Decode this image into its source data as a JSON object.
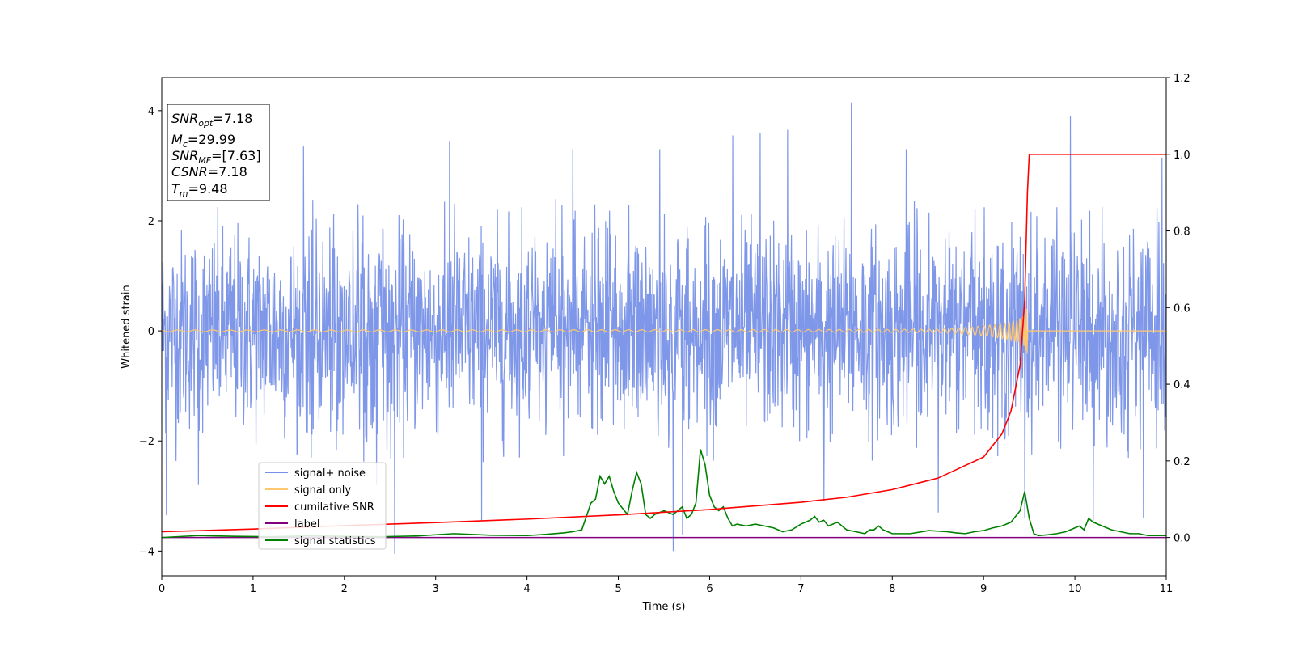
{
  "chart_data": {
    "type": "line",
    "xlabel": "Time (s)",
    "ylabel": "Whitened strain",
    "xlim": [
      0,
      11
    ],
    "ylim_left": [
      -4.45,
      4.6
    ],
    "ylim_right": [
      -0.1,
      1.2
    ],
    "xticks": [
      "0",
      "1",
      "2",
      "3",
      "4",
      "5",
      "6",
      "7",
      "8",
      "9",
      "10",
      "11"
    ],
    "yticks_left": [
      "−4",
      "−2",
      "0",
      "2",
      "4"
    ],
    "yticks_right": [
      "0.0",
      "0.2",
      "0.4",
      "0.6",
      "0.8",
      "1.0",
      "1.2"
    ],
    "grid": false,
    "legend_position": "lower-left",
    "annotation": {
      "snr_opt": "7.18",
      "mc": "29.99",
      "snr_mf": "[7.63]",
      "csnr": "7.18",
      "tm": "9.48"
    },
    "series": [
      {
        "name": "signal+ noise",
        "axis": "left",
        "color": "#7891e8",
        "description_range": [
          -2.6,
          2.6
        ],
        "outliers": [
          [
            0.05,
            -3.35
          ],
          [
            0.4,
            -2.8
          ],
          [
            1.55,
            3.35
          ],
          [
            2.35,
            -2.8
          ],
          [
            2.55,
            -4.05
          ],
          [
            3.15,
            3.45
          ],
          [
            3.5,
            -3.45
          ],
          [
            4.5,
            3.3
          ],
          [
            5.45,
            3.3
          ],
          [
            5.6,
            -4.0
          ],
          [
            5.7,
            -3.7
          ],
          [
            6.25,
            3.55
          ],
          [
            6.55,
            3.6
          ],
          [
            6.85,
            3.65
          ],
          [
            7.25,
            -3.1
          ],
          [
            7.55,
            4.15
          ],
          [
            8.15,
            3.3
          ],
          [
            8.5,
            -3.3
          ],
          [
            9.45,
            -3.4
          ],
          [
            9.95,
            3.9
          ],
          [
            10.2,
            -3.5
          ],
          [
            10.75,
            -3.4
          ],
          [
            10.95,
            3.15
          ]
        ]
      },
      {
        "name": "signal only",
        "axis": "left",
        "color": "#ffc870",
        "chirp_end": 9.48,
        "max_amplitude": 0.55
      },
      {
        "name": "cumilative SNR",
        "axis": "right",
        "color": "#ff0000",
        "x": [
          0,
          1,
          2,
          3,
          4,
          5,
          6,
          7,
          7.5,
          8,
          8.5,
          9,
          9.2,
          9.3,
          9.4,
          9.45,
          9.48,
          9.5,
          11
        ],
        "y": [
          0.015,
          0.022,
          0.031,
          0.039,
          0.048,
          0.059,
          0.073,
          0.092,
          0.105,
          0.125,
          0.155,
          0.21,
          0.27,
          0.33,
          0.45,
          0.62,
          0.9,
          1.0,
          1.0
        ]
      },
      {
        "name": "label",
        "axis": "right",
        "color": "#800080",
        "x": [
          0,
          11
        ],
        "y": [
          0.0,
          0.0
        ]
      },
      {
        "name": "signal statistics",
        "axis": "right",
        "color": "#008000",
        "x": [
          0,
          0.4,
          0.8,
          1.2,
          1.6,
          2.0,
          2.4,
          2.8,
          3.2,
          3.6,
          4.0,
          4.2,
          4.4,
          4.5,
          4.6,
          4.7,
          4.75,
          4.8,
          4.85,
          4.9,
          4.95,
          5.0,
          5.1,
          5.15,
          5.2,
          5.25,
          5.3,
          5.35,
          5.4,
          5.5,
          5.6,
          5.65,
          5.7,
          5.75,
          5.8,
          5.85,
          5.9,
          5.95,
          6.0,
          6.05,
          6.1,
          6.15,
          6.2,
          6.25,
          6.3,
          6.4,
          6.5,
          6.6,
          6.7,
          6.8,
          6.9,
          7.0,
          7.1,
          7.15,
          7.2,
          7.25,
          7.3,
          7.4,
          7.5,
          7.6,
          7.7,
          7.75,
          7.8,
          7.85,
          7.9,
          8.0,
          8.2,
          8.4,
          8.6,
          8.7,
          8.8,
          8.9,
          9.0,
          9.1,
          9.2,
          9.3,
          9.35,
          9.4,
          9.45,
          9.5,
          9.55,
          9.6,
          9.7,
          9.8,
          9.9,
          10.0,
          10.05,
          10.1,
          10.15,
          10.2,
          10.3,
          10.4,
          10.5,
          10.6,
          10.7,
          10.8,
          11.0
        ],
        "y": [
          0.0,
          0.005,
          0.003,
          0.002,
          0.004,
          0.003,
          0.002,
          0.004,
          0.01,
          0.006,
          0.005,
          0.008,
          0.012,
          0.015,
          0.02,
          0.09,
          0.1,
          0.16,
          0.14,
          0.16,
          0.12,
          0.09,
          0.06,
          0.12,
          0.17,
          0.14,
          0.06,
          0.05,
          0.06,
          0.07,
          0.06,
          0.07,
          0.08,
          0.05,
          0.06,
          0.09,
          0.23,
          0.19,
          0.11,
          0.08,
          0.07,
          0.08,
          0.05,
          0.03,
          0.035,
          0.03,
          0.035,
          0.03,
          0.025,
          0.015,
          0.02,
          0.035,
          0.045,
          0.055,
          0.04,
          0.045,
          0.03,
          0.04,
          0.02,
          0.015,
          0.01,
          0.02,
          0.02,
          0.03,
          0.02,
          0.01,
          0.01,
          0.018,
          0.015,
          0.012,
          0.01,
          0.015,
          0.018,
          0.025,
          0.03,
          0.04,
          0.055,
          0.07,
          0.12,
          0.05,
          0.01,
          0.005,
          0.007,
          0.01,
          0.015,
          0.025,
          0.03,
          0.02,
          0.05,
          0.04,
          0.03,
          0.02,
          0.015,
          0.01,
          0.01,
          0.005,
          0.005
        ]
      }
    ]
  }
}
